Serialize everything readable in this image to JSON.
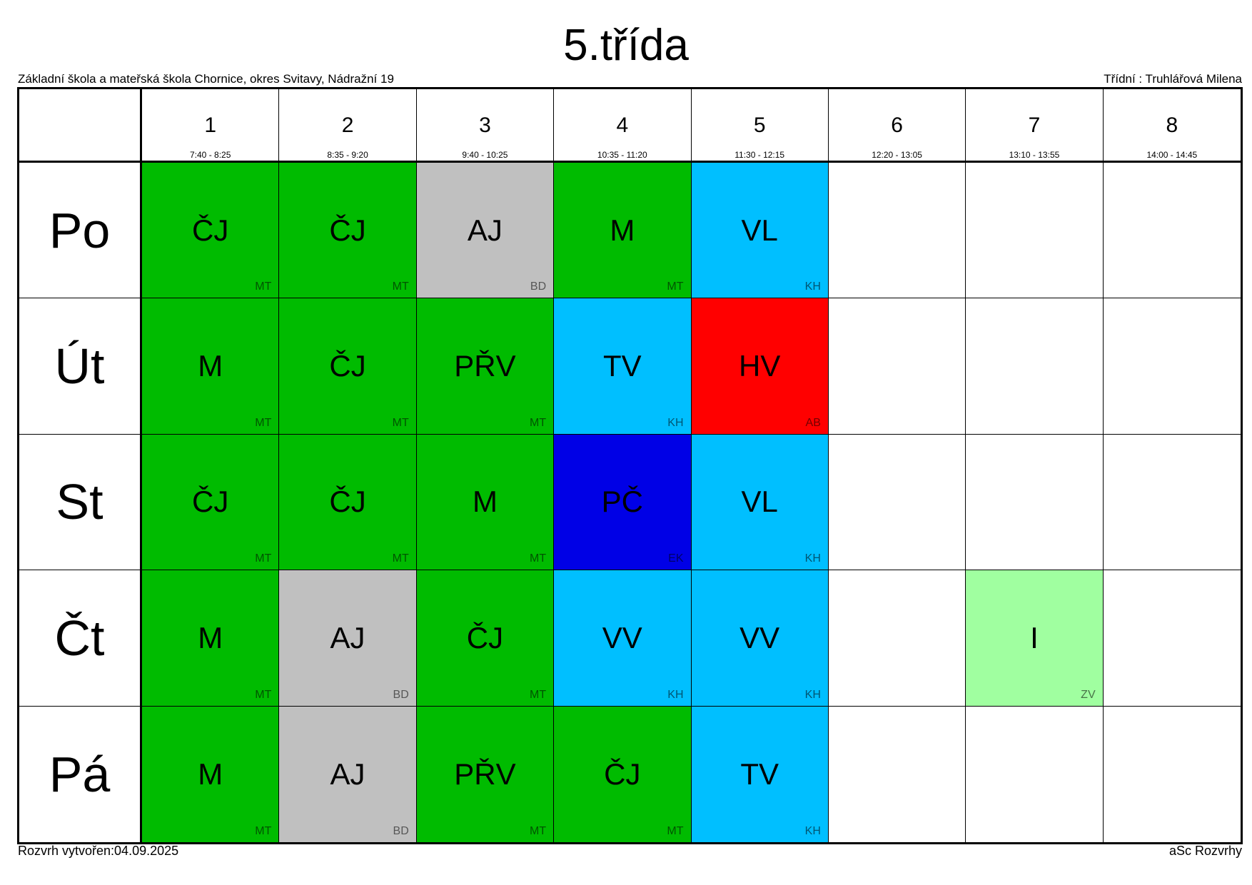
{
  "title": "5.třída",
  "school": "Základní škola a mateřská škola Chornice, okres Svitavy, Nádražní 19",
  "class_teacher": "Třídní : Truhlářová Milena",
  "footer_created": "Rozvrh vytvořen:04.09.2025",
  "footer_app": "aSc Rozvrhy",
  "periods": [
    {
      "num": "1",
      "time": "7:40 - 8:25"
    },
    {
      "num": "2",
      "time": "8:35 - 9:20"
    },
    {
      "num": "3",
      "time": "9:40 - 10:25"
    },
    {
      "num": "4",
      "time": "10:35 - 11:20"
    },
    {
      "num": "5",
      "time": "11:30 - 12:15"
    },
    {
      "num": "6",
      "time": "12:20 - 13:05"
    },
    {
      "num": "7",
      "time": "13:10 - 13:55"
    },
    {
      "num": "8",
      "time": "14:00 - 14:45"
    }
  ],
  "days": [
    {
      "name": "Po",
      "lessons": [
        {
          "subject": "ČJ",
          "teacher": "MT",
          "color": "#00bb00"
        },
        {
          "subject": "ČJ",
          "teacher": "MT",
          "color": "#00bb00"
        },
        {
          "subject": "AJ",
          "teacher": "BD",
          "color": "#c0c0c0"
        },
        {
          "subject": "M",
          "teacher": "MT",
          "color": "#00bb00"
        },
        {
          "subject": "VL",
          "teacher": "KH",
          "color": "#00bfff"
        },
        null,
        null,
        null
      ]
    },
    {
      "name": "Út",
      "lessons": [
        {
          "subject": "M",
          "teacher": "MT",
          "color": "#00bb00"
        },
        {
          "subject": "ČJ",
          "teacher": "MT",
          "color": "#00bb00"
        },
        {
          "subject": "PŘV",
          "teacher": "MT",
          "color": "#00bb00"
        },
        {
          "subject": "TV",
          "teacher": "KH",
          "color": "#00bfff"
        },
        {
          "subject": "HV",
          "teacher": "AB",
          "color": "#ff0000"
        },
        null,
        null,
        null
      ]
    },
    {
      "name": "St",
      "lessons": [
        {
          "subject": "ČJ",
          "teacher": "MT",
          "color": "#00bb00"
        },
        {
          "subject": "ČJ",
          "teacher": "MT",
          "color": "#00bb00"
        },
        {
          "subject": "M",
          "teacher": "MT",
          "color": "#00bb00"
        },
        {
          "subject": "PČ",
          "teacher": "EK",
          "color": "#0000e6"
        },
        {
          "subject": "VL",
          "teacher": "KH",
          "color": "#00bfff"
        },
        null,
        null,
        null
      ]
    },
    {
      "name": "Čt",
      "lessons": [
        {
          "subject": "M",
          "teacher": "MT",
          "color": "#00bb00"
        },
        {
          "subject": "AJ",
          "teacher": "BD",
          "color": "#c0c0c0"
        },
        {
          "subject": "ČJ",
          "teacher": "MT",
          "color": "#00bb00"
        },
        {
          "subject": "VV",
          "teacher": "KH",
          "color": "#00bfff"
        },
        {
          "subject": "VV",
          "teacher": "KH",
          "color": "#00bfff"
        },
        null,
        {
          "subject": "I",
          "teacher": "ZV",
          "color": "#a0ffa0"
        },
        null
      ]
    },
    {
      "name": "Pá",
      "lessons": [
        {
          "subject": "M",
          "teacher": "MT",
          "color": "#00bb00"
        },
        {
          "subject": "AJ",
          "teacher": "BD",
          "color": "#c0c0c0"
        },
        {
          "subject": "PŘV",
          "teacher": "MT",
          "color": "#00bb00"
        },
        {
          "subject": "ČJ",
          "teacher": "MT",
          "color": "#00bb00"
        },
        {
          "subject": "TV",
          "teacher": "KH",
          "color": "#00bfff"
        },
        null,
        null,
        null
      ]
    }
  ]
}
